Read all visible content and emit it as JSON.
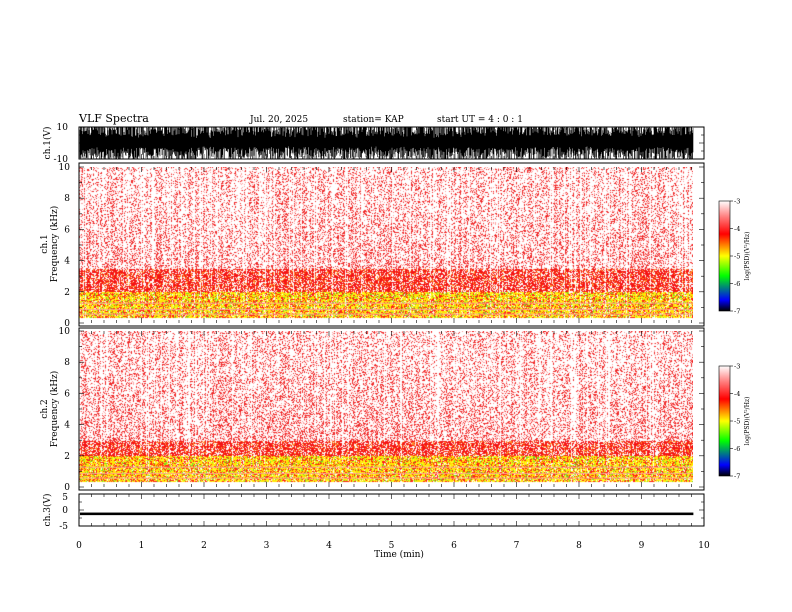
{
  "header": {
    "title": "VLF Spectra",
    "date": "Jul. 20, 2025",
    "station": "station= KAP",
    "start": "start UT =  4 : 0 : 1"
  },
  "colorbar": {
    "title": "log(PSD)(V²/Hz)",
    "ticks": [
      "-3",
      "-4",
      "-5",
      "-6",
      "-7"
    ],
    "values": [
      -3,
      -4,
      -5,
      -6,
      -7
    ],
    "colors": [
      "#ffffff",
      "#ff0000",
      "#ffff00",
      "#00ff00",
      "#0000ff",
      "#000000"
    ]
  },
  "chart_data": [
    {
      "type": "line",
      "name": "ch1-waveform",
      "ylabel": "ch.1(V)",
      "ylim": [
        -10,
        10
      ],
      "yticks": [
        -10,
        10
      ],
      "ytick_labels": [
        "-10",
        "10"
      ],
      "xlim": [
        0,
        10
      ],
      "data_extent_min": 9.83,
      "description_values": {
        "clip_high": 10,
        "clip_low": -10
      }
    },
    {
      "type": "heatmap",
      "name": "ch1-spectrogram",
      "ylabel_lines": [
        "ch.1",
        "Frequency (kHz)"
      ],
      "xlim": [
        0,
        10
      ],
      "ylim": [
        0,
        10
      ],
      "yticks": [
        0,
        2,
        4,
        6,
        8,
        10
      ],
      "ytick_labels": [
        "0",
        "2",
        "4",
        "6",
        "8",
        "10"
      ],
      "data_extent_min": 9.83,
      "band_intensity_khz": {
        "0.5-2": -4.5,
        "2-3.5": -4.0,
        "3.5-10": -3.3
      }
    },
    {
      "type": "heatmap",
      "name": "ch2-spectrogram",
      "ylabel_lines": [
        "ch.2",
        "Frequency (kHz)"
      ],
      "xlim": [
        0,
        10
      ],
      "ylim": [
        0,
        10
      ],
      "yticks": [
        0,
        2,
        4,
        6,
        8,
        10
      ],
      "ytick_labels": [
        "0",
        "2",
        "4",
        "6",
        "8",
        "10"
      ],
      "data_extent_min": 9.83,
      "band_intensity_khz": {
        "0.5-2": -4.5,
        "2-3": -4.0,
        "3-10": -3.3
      }
    },
    {
      "type": "line",
      "name": "ch3-waveform",
      "ylabel": "ch.3(V)",
      "ylim": [
        -5,
        5
      ],
      "yticks": [
        -5,
        0,
        5
      ],
      "ytick_labels": [
        "-5",
        "0",
        "5"
      ],
      "xlim": [
        0,
        10
      ],
      "xticks": [
        0,
        1,
        2,
        3,
        4,
        5,
        6,
        7,
        8,
        9,
        10
      ],
      "xtick_labels": [
        "0",
        "1",
        "2",
        "3",
        "4",
        "5",
        "6",
        "7",
        "8",
        "9",
        "10"
      ],
      "xlabel": "Time (min)",
      "data_extent_min": 9.83,
      "values_v": {
        "center": -1.2,
        "amplitude": 0.4
      }
    }
  ]
}
